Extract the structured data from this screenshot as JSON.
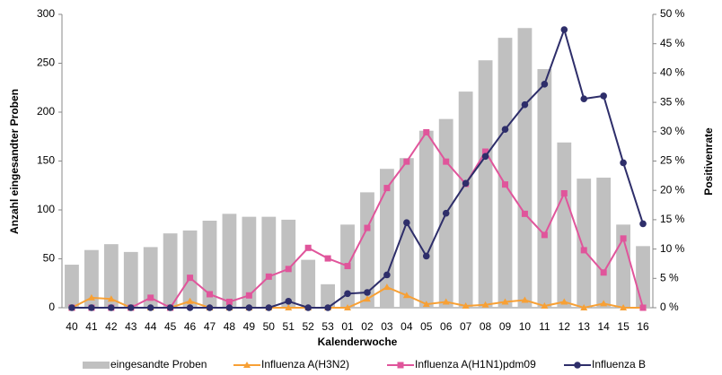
{
  "chart_data": {
    "type": "bar-line",
    "y_label": "Anzahl eingesandter Proben",
    "y2_label": "Positivenrate",
    "x_label": "Kalenderwoche",
    "categories": [
      "40",
      "41",
      "42",
      "43",
      "44",
      "45",
      "46",
      "47",
      "48",
      "49",
      "50",
      "51",
      "52",
      "53",
      "01",
      "02",
      "03",
      "04",
      "05",
      "06",
      "07",
      "08",
      "09",
      "10",
      "11",
      "12",
      "13",
      "14",
      "15",
      "16"
    ],
    "ylim": [
      0,
      300
    ],
    "yticks": [
      0,
      50,
      100,
      150,
      200,
      250,
      300
    ],
    "y2lim": [
      0,
      50
    ],
    "y2ticks": [
      {
        "value": 0,
        "label": "0 %"
      },
      {
        "value": 5,
        "label": "5 %"
      },
      {
        "value": 10,
        "label": "10 %"
      },
      {
        "value": 15,
        "label": "15 %"
      },
      {
        "value": 20,
        "label": "20 %"
      },
      {
        "value": 25,
        "label": "25 %"
      },
      {
        "value": 30,
        "label": "30 %"
      },
      {
        "value": 35,
        "label": "35 %"
      },
      {
        "value": 40,
        "label": "40 %"
      },
      {
        "value": 45,
        "label": "45 %"
      },
      {
        "value": 50,
        "label": "50 %"
      }
    ],
    "grid": false,
    "legend": "bottom",
    "series": [
      {
        "name": "eingesandte Proben",
        "type": "bar",
        "color": "#c0c0c0",
        "values": [
          44,
          59,
          65,
          57,
          62,
          76,
          79,
          89,
          96,
          93,
          93,
          90,
          49,
          24,
          85,
          118,
          142,
          153,
          181,
          193,
          221,
          253,
          276,
          286,
          244,
          169,
          132,
          133,
          85,
          63
        ]
      },
      {
        "name": "Influenza A(H3N2)",
        "type": "line",
        "axis": "y2",
        "color": "#f7a035",
        "marker": "triangle",
        "values": [
          0,
          1.7,
          1.5,
          0,
          0,
          0,
          1.1,
          0,
          0,
          0,
          0,
          0,
          0,
          0,
          0,
          1.5,
          3.5,
          2.1,
          0.6,
          1.0,
          0.3,
          0.5,
          1.0,
          1.3,
          0.3,
          1.0,
          0,
          0.7,
          0,
          0
        ]
      },
      {
        "name": "Influenza A(H1N1)pdm09",
        "type": "line",
        "axis": "y2",
        "color": "#e0559b",
        "marker": "square",
        "values": [
          0,
          0,
          0,
          0,
          1.7,
          0,
          5.1,
          2.3,
          1.0,
          2.1,
          5.3,
          6.6,
          10.2,
          8.4,
          7.1,
          13.6,
          20.4,
          24.9,
          29.9,
          24.9,
          21.1,
          26.6,
          21.0,
          16.0,
          12.4,
          19.5,
          9.8,
          6.0,
          11.8,
          0
        ]
      },
      {
        "name": "Influenza B",
        "type": "line",
        "axis": "y2",
        "color": "#2e2e6a",
        "marker": "circle",
        "values": [
          0,
          0,
          0,
          0,
          0,
          0,
          0,
          0,
          0,
          0,
          0,
          1.1,
          0,
          0,
          2.4,
          2.6,
          5.6,
          14.5,
          8.8,
          16.1,
          21.2,
          25.8,
          30.4,
          34.6,
          38.1,
          47.4,
          35.6,
          36.1,
          24.7,
          14.3
        ]
      }
    ]
  }
}
